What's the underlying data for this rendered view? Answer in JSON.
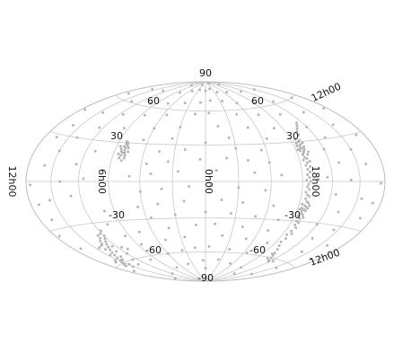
{
  "chart_data": {
    "type": "scatter",
    "projection": "hammer-aitoff",
    "title": "",
    "xlabel": "",
    "ylabel": "",
    "grid": true,
    "legend": "none",
    "point_color": "#b3b3b3",
    "grid_color": "#c8c8c8",
    "longitude_range": [
      -180,
      180
    ],
    "latitude_range": [
      -90,
      90
    ],
    "latitude_ticks": [
      {
        "value": 90,
        "label": "90"
      },
      {
        "value": 60,
        "label": "60"
      },
      {
        "value": 30,
        "label": "30"
      },
      {
        "value": -30,
        "label": "-30"
      },
      {
        "value": -60,
        "label": "-60"
      },
      {
        "value": -90,
        "label": "-90"
      }
    ],
    "longitude_ticks": [
      {
        "value": 0,
        "label": "0h00"
      },
      {
        "value": 90,
        "label": "6h00"
      },
      {
        "value": -90,
        "label": "18h00"
      },
      {
        "value": 180,
        "label": "12h00"
      }
    ],
    "points": [
      [
        95,
        20
      ],
      [
        96,
        21
      ],
      [
        97,
        22
      ],
      [
        94,
        23
      ],
      [
        98,
        23
      ],
      [
        95,
        25
      ],
      [
        97,
        25
      ],
      [
        99,
        24
      ],
      [
        93,
        27
      ],
      [
        96,
        27
      ],
      [
        98,
        28
      ],
      [
        100,
        26
      ],
      [
        94,
        29
      ],
      [
        97,
        30
      ],
      [
        99,
        31
      ],
      [
        95,
        32
      ],
      [
        101,
        29
      ],
      [
        92,
        24
      ],
      [
        102,
        22
      ],
      [
        100,
        20
      ],
      [
        96,
        18
      ],
      [
        98,
        17
      ],
      [
        94,
        16
      ],
      [
        100,
        15
      ],
      [
        97,
        14
      ],
      [
        95,
        12
      ],
      [
        99,
        11
      ],
      [
        96,
        9
      ],
      [
        98,
        7
      ],
      [
        95,
        5
      ],
      [
        97,
        3
      ],
      [
        94,
        1
      ],
      [
        98,
        0
      ],
      [
        96,
        -2
      ],
      [
        95,
        -4
      ],
      [
        97,
        -6
      ],
      [
        94,
        -8
      ],
      [
        96,
        -10
      ],
      [
        98,
        -11
      ],
      [
        95,
        -13
      ],
      [
        97,
        -15
      ],
      [
        99,
        -16
      ],
      [
        93,
        -17
      ],
      [
        96,
        -18
      ],
      [
        98,
        -19
      ],
      [
        94,
        -20
      ],
      [
        100,
        -20
      ],
      [
        97,
        -21
      ],
      [
        95,
        -22
      ],
      [
        99,
        -22
      ],
      [
        92,
        -21
      ],
      [
        101,
        -18
      ],
      [
        96,
        -24
      ],
      [
        98,
        -25
      ],
      [
        94,
        -26
      ],
      [
        97,
        -28
      ],
      [
        100,
        -27
      ],
      [
        95,
        -30
      ],
      [
        98,
        -31
      ],
      [
        96,
        -33
      ],
      [
        99,
        -35
      ],
      [
        97,
        -38
      ],
      [
        95,
        -41
      ],
      [
        100,
        -40
      ],
      [
        98,
        -44
      ],
      [
        96,
        -47
      ],
      [
        99,
        -50
      ],
      [
        103,
        -53
      ],
      [
        106,
        -56
      ],
      [
        109,
        -58
      ],
      [
        112,
        -60
      ],
      [
        115,
        -62
      ],
      [
        104,
        -57
      ],
      [
        108,
        -61
      ],
      [
        118,
        -63
      ],
      [
        102,
        35
      ],
      [
        104,
        38
      ],
      [
        107,
        40
      ],
      [
        110,
        42
      ],
      [
        113,
        44
      ],
      [
        -78,
        20
      ],
      [
        -79,
        22
      ],
      [
        -80,
        24
      ],
      [
        -81,
        22
      ],
      [
        -82,
        20
      ],
      [
        -83,
        23
      ],
      [
        -80,
        26
      ],
      [
        -82,
        27
      ],
      [
        -84,
        25
      ],
      [
        -79,
        28
      ],
      [
        -81,
        29
      ],
      [
        -77,
        26
      ],
      [
        -85,
        21
      ],
      [
        -78,
        18
      ],
      [
        -83,
        18
      ],
      [
        -80,
        30
      ],
      [
        -76,
        23
      ],
      [
        -86,
        27
      ],
      [
        -82,
        31
      ],
      [
        -80,
        16
      ],
      [
        -120,
        -40
      ],
      [
        -123,
        -42
      ],
      [
        -126,
        -44
      ],
      [
        -129,
        -46
      ],
      [
        -132,
        -48
      ],
      [
        -135,
        -50
      ],
      [
        -138,
        -52
      ],
      [
        -141,
        -54
      ],
      [
        -144,
        -56
      ],
      [
        -147,
        -58
      ],
      [
        -150,
        -59
      ],
      [
        -153,
        -60
      ],
      [
        -156,
        -61
      ],
      [
        -159,
        -62
      ],
      [
        -125,
        -48
      ],
      [
        -130,
        -52
      ],
      [
        -136,
        -56
      ],
      [
        -142,
        -58
      ],
      [
        -148,
        -62
      ],
      [
        -152,
        -64
      ],
      [
        -118,
        -36
      ],
      [
        -122,
        -38
      ],
      [
        -128,
        -41
      ],
      [
        -134,
        -45
      ],
      [
        -140,
        -49
      ],
      [
        -146,
        -53
      ],
      [
        -145,
        -47
      ],
      [
        -138,
        -46
      ],
      [
        -132,
        -43
      ],
      [
        -127,
        -39
      ],
      [
        -155,
        -57
      ],
      [
        -160,
        -58
      ],
      [
        -115,
        -50
      ],
      [
        -120,
        -55
      ],
      [
        -128,
        -60
      ],
      [
        -135,
        -64
      ],
      [
        0,
        80
      ],
      [
        20,
        82
      ],
      [
        -25,
        81
      ],
      [
        40,
        78
      ],
      [
        -50,
        79
      ],
      [
        70,
        77
      ],
      [
        -80,
        76
      ],
      [
        110,
        75
      ],
      [
        -130,
        74
      ],
      [
        150,
        73
      ],
      [
        -160,
        72
      ],
      [
        10,
        70
      ],
      [
        -10,
        68
      ],
      [
        35,
        69
      ],
      [
        -40,
        67
      ],
      [
        60,
        66
      ],
      [
        -70,
        65
      ],
      [
        90,
        64
      ],
      [
        -100,
        63
      ],
      [
        125,
        62
      ],
      [
        -135,
        61
      ],
      [
        165,
        60
      ],
      [
        -170,
        64
      ],
      [
        5,
        58
      ],
      [
        -15,
        57
      ],
      [
        45,
        56
      ],
      [
        -55,
        55
      ],
      [
        75,
        54
      ],
      [
        -85,
        53
      ],
      [
        105,
        52
      ],
      [
        -115,
        51
      ],
      [
        140,
        50
      ],
      [
        -145,
        49
      ],
      [
        175,
        48
      ],
      [
        -175,
        47
      ],
      [
        15,
        46
      ],
      [
        -30,
        45
      ],
      [
        50,
        44
      ],
      [
        -60,
        43
      ],
      [
        80,
        42
      ],
      [
        -95,
        41
      ],
      [
        120,
        40
      ],
      [
        -125,
        39
      ],
      [
        155,
        38
      ],
      [
        -160,
        37
      ],
      [
        25,
        36
      ],
      [
        -35,
        35
      ],
      [
        65,
        34
      ],
      [
        -65,
        33
      ],
      [
        0,
        32
      ],
      [
        130,
        31
      ],
      [
        -140,
        30
      ],
      [
        170,
        29
      ],
      [
        -165,
        28
      ],
      [
        30,
        27
      ],
      [
        -20,
        26
      ],
      [
        55,
        25
      ],
      [
        -45,
        24
      ],
      [
        120,
        23
      ],
      [
        -110,
        22
      ],
      [
        150,
        21
      ],
      [
        -150,
        20
      ],
      [
        20,
        19
      ],
      [
        -5,
        18
      ],
      [
        40,
        17
      ],
      [
        -35,
        16
      ],
      [
        60,
        15
      ],
      [
        -55,
        14
      ],
      [
        130,
        13
      ],
      [
        -125,
        12
      ],
      [
        160,
        11
      ],
      [
        -160,
        10
      ],
      [
        10,
        9
      ],
      [
        -25,
        8
      ],
      [
        45,
        7
      ],
      [
        -50,
        6
      ],
      [
        70,
        5
      ],
      [
        -70,
        4
      ],
      [
        115,
        3
      ],
      [
        -115,
        2
      ],
      [
        140,
        1
      ],
      [
        -140,
        0
      ],
      [
        175,
        -1
      ],
      [
        -175,
        -2
      ],
      [
        5,
        -3
      ],
      [
        -15,
        -4
      ],
      [
        30,
        -5
      ],
      [
        -40,
        -6
      ],
      [
        55,
        -7
      ],
      [
        -60,
        -8
      ],
      [
        125,
        -9
      ],
      [
        -130,
        -10
      ],
      [
        155,
        -11
      ],
      [
        -155,
        -12
      ],
      [
        170,
        -13
      ],
      [
        -170,
        -14
      ],
      [
        15,
        -15
      ],
      [
        -20,
        -16
      ],
      [
        35,
        -17
      ],
      [
        -45,
        -18
      ],
      [
        65,
        -19
      ],
      [
        -65,
        -20
      ],
      [
        135,
        -21
      ],
      [
        -100,
        -22
      ],
      [
        165,
        -23
      ],
      [
        -165,
        -24
      ],
      [
        0,
        -25
      ],
      [
        25,
        -26
      ],
      [
        -30,
        -27
      ],
      [
        50,
        -28
      ],
      [
        -55,
        -29
      ],
      [
        75,
        -30
      ],
      [
        120,
        -31
      ],
      [
        -105,
        -32
      ],
      [
        145,
        -33
      ],
      [
        -175,
        -34
      ],
      [
        10,
        -35
      ],
      [
        -10,
        -36
      ],
      [
        40,
        -37
      ],
      [
        -40,
        -38
      ],
      [
        70,
        -39
      ],
      [
        -75,
        -40
      ],
      [
        130,
        -41
      ],
      [
        -95,
        -42
      ],
      [
        160,
        -43
      ],
      [
        -170,
        -44
      ],
      [
        20,
        -45
      ],
      [
        -25,
        -46
      ],
      [
        50,
        -47
      ],
      [
        -50,
        -48
      ],
      [
        80,
        -49
      ],
      [
        -85,
        -50
      ],
      [
        140,
        -51
      ],
      [
        -110,
        -52
      ],
      [
        170,
        -53
      ],
      [
        5,
        -55
      ],
      [
        -15,
        -56
      ],
      [
        35,
        -57
      ],
      [
        -35,
        -58
      ],
      [
        65,
        -59
      ],
      [
        -60,
        -60
      ],
      [
        125,
        -62
      ],
      [
        -100,
        -63
      ],
      [
        155,
        -65
      ],
      [
        -170,
        -66
      ],
      [
        25,
        -67
      ],
      [
        -5,
        -68
      ],
      [
        55,
        -70
      ],
      [
        -40,
        -71
      ],
      [
        90,
        -72
      ],
      [
        -75,
        -73
      ],
      [
        150,
        -74
      ],
      [
        0,
        -76
      ],
      [
        -120,
        -77
      ],
      [
        110,
        -78
      ],
      [
        -160,
        -80
      ],
      [
        60,
        88
      ],
      [
        -30,
        86
      ],
      [
        120,
        85
      ],
      [
        -100,
        84
      ]
    ]
  }
}
